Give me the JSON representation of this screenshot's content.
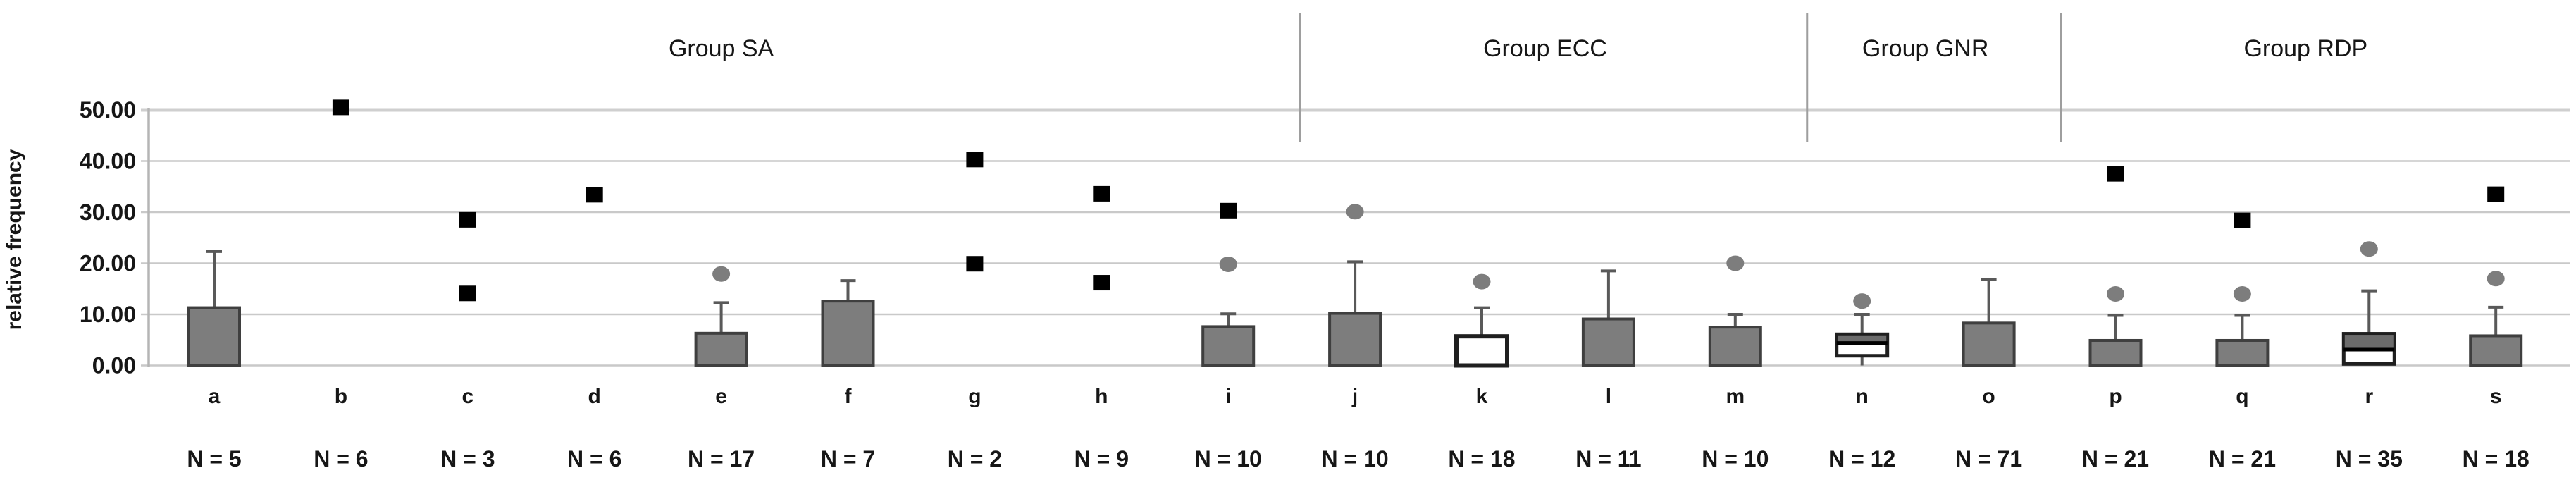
{
  "figure": {
    "ylabel": "relative frequency"
  },
  "chart_data": {
    "type": "box",
    "title": "",
    "ylabel": "relative frequency",
    "xlabel": "",
    "ylim": [
      0,
      50
    ],
    "yticks": [
      0,
      10,
      20,
      30,
      40,
      50
    ],
    "ytick_labels": [
      "0.00",
      "10.00",
      "20.00",
      "30.00",
      "40.00",
      "50.00"
    ],
    "grid": true,
    "legend": "none",
    "groups": [
      {
        "label": "Group SA",
        "categories": [
          "a",
          "b",
          "c",
          "d",
          "e",
          "f",
          "g",
          "h",
          "i"
        ]
      },
      {
        "label": "Group ECC",
        "categories": [
          "j",
          "k",
          "l",
          "m"
        ]
      },
      {
        "label": "Group GNR",
        "categories": [
          "n",
          "o"
        ]
      },
      {
        "label": "Group RDP",
        "categories": [
          "p",
          "q",
          "r",
          "s"
        ]
      }
    ],
    "categories": [
      {
        "label": "a",
        "n": 5,
        "n_label": "N = 5",
        "style": "gray",
        "box": {
          "low": 0,
          "q3": 11.3,
          "whisker_high": 22.3
        },
        "square_outliers": [],
        "circle_outliers": []
      },
      {
        "label": "b",
        "n": 6,
        "n_label": "N = 6",
        "style": "none",
        "box": null,
        "square_outliers": [
          50.5
        ],
        "circle_outliers": []
      },
      {
        "label": "c",
        "n": 3,
        "n_label": "N = 3",
        "style": "none",
        "box": null,
        "square_outliers": [
          28.5,
          14.1
        ],
        "circle_outliers": []
      },
      {
        "label": "d",
        "n": 6,
        "n_label": "N = 6",
        "style": "none",
        "box": null,
        "square_outliers": [
          33.4
        ],
        "circle_outliers": []
      },
      {
        "label": "e",
        "n": 17,
        "n_label": "N = 17",
        "style": "gray",
        "box": {
          "low": 0,
          "q3": 6.3,
          "whisker_high": 12.3
        },
        "square_outliers": [],
        "circle_outliers": [
          17.9
        ]
      },
      {
        "label": "f",
        "n": 7,
        "n_label": "N = 7",
        "style": "gray",
        "box": {
          "low": 0,
          "q3": 12.6,
          "whisker_high": 16.6
        },
        "square_outliers": [],
        "circle_outliers": []
      },
      {
        "label": "g",
        "n": 2,
        "n_label": "N = 2",
        "style": "none",
        "box": null,
        "square_outliers": [
          40.3,
          19.9
        ],
        "circle_outliers": []
      },
      {
        "label": "h",
        "n": 9,
        "n_label": "N = 9",
        "style": "none",
        "box": null,
        "square_outliers": [
          33.6,
          16.2
        ],
        "circle_outliers": []
      },
      {
        "label": "i",
        "n": 10,
        "n_label": "N = 10",
        "style": "gray",
        "box": {
          "low": 0,
          "q3": 7.6,
          "whisker_high": 10.1
        },
        "square_outliers": [
          30.3
        ],
        "circle_outliers": [
          19.8
        ]
      },
      {
        "label": "j",
        "n": 10,
        "n_label": "N = 10",
        "style": "gray",
        "box": {
          "low": 0,
          "q3": 10.2,
          "whisker_high": 20.3
        },
        "square_outliers": [],
        "circle_outliers": [
          30.1
        ]
      },
      {
        "label": "k",
        "n": 18,
        "n_label": "N = 18",
        "style": "white",
        "box": {
          "low": 0,
          "q3": 5.7,
          "whisker_high": 11.3
        },
        "square_outliers": [],
        "circle_outliers": [
          16.4
        ]
      },
      {
        "label": "l",
        "n": 11,
        "n_label": "N = 11",
        "style": "gray",
        "box": {
          "low": 0,
          "q3": 9.1,
          "whisker_high": 18.5
        },
        "square_outliers": [],
        "circle_outliers": []
      },
      {
        "label": "m",
        "n": 10,
        "n_label": "N = 10",
        "style": "gray",
        "box": {
          "low": 0,
          "q3": 7.5,
          "whisker_high": 10.0
        },
        "square_outliers": [],
        "circle_outliers": [
          20.0
        ]
      },
      {
        "label": "n",
        "n": 12,
        "n_label": "N = 12",
        "style": "split",
        "box": {
          "low": 1.9,
          "median": 4.4,
          "q3": 6.1,
          "whisker_high": 10.0,
          "whisker_low": 0
        },
        "square_outliers": [],
        "circle_outliers": [
          12.6
        ]
      },
      {
        "label": "o",
        "n": 71,
        "n_label": "N = 71",
        "style": "gray",
        "box": {
          "low": 0,
          "q3": 8.3,
          "whisker_high": 16.8
        },
        "square_outliers": [],
        "circle_outliers": []
      },
      {
        "label": "p",
        "n": 21,
        "n_label": "N = 21",
        "style": "gray",
        "box": {
          "low": 0,
          "q3": 4.9,
          "whisker_high": 9.8
        },
        "square_outliers": [
          37.5
        ],
        "circle_outliers": [
          14.0
        ]
      },
      {
        "label": "q",
        "n": 21,
        "n_label": "N = 21",
        "style": "gray",
        "box": {
          "low": 0,
          "q3": 4.9,
          "whisker_high": 9.8
        },
        "square_outliers": [
          28.4
        ],
        "circle_outliers": [
          14.0
        ]
      },
      {
        "label": "r",
        "n": 35,
        "n_label": "N = 35",
        "style": "split",
        "box": {
          "low": 0.3,
          "median": 3.1,
          "q3": 6.2,
          "whisker_high": 14.6
        },
        "square_outliers": [],
        "circle_outliers": [
          22.8
        ]
      },
      {
        "label": "s",
        "n": 18,
        "n_label": "N = 18",
        "style": "gray",
        "box": {
          "low": 0,
          "q3": 5.8,
          "whisker_high": 11.4
        },
        "square_outliers": [
          33.5
        ],
        "circle_outliers": [
          17.0
        ]
      }
    ],
    "colors": {
      "box_fill_gray": "#7d7d7d",
      "box_border": "#3f3f3f",
      "box_fill_white": "#ffffff",
      "dark_box_border": "#1f1f1f",
      "split_upper_fill": "#6b6b6b",
      "median_line": "#000000",
      "whisker": "#595959",
      "square_marker": "#000000",
      "circle_marker": "#7d7d7d",
      "gridline": "#c9c9c9",
      "gridline_top": "#cfcfcf",
      "axis_line": "#b5b5b5",
      "divider_line": "#9e9e9e",
      "text": "#161616"
    }
  }
}
